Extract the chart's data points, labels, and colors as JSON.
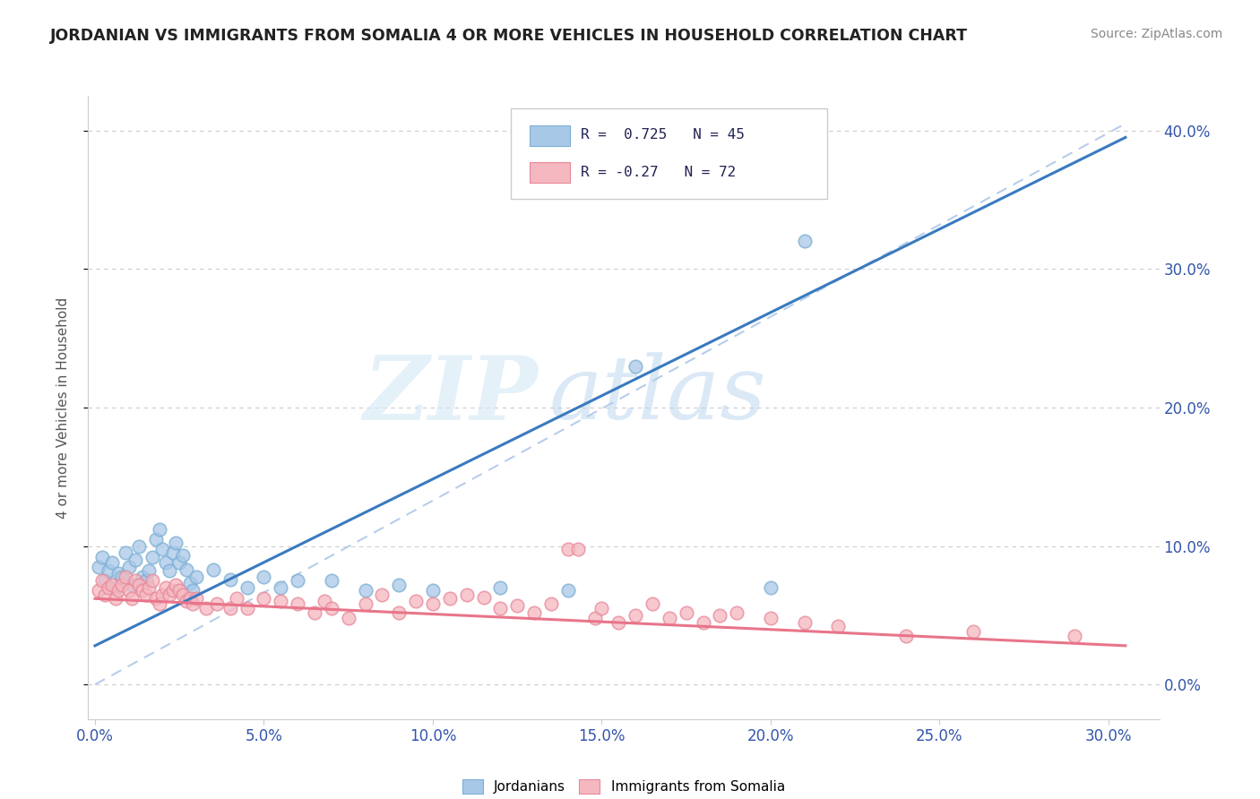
{
  "title": "JORDANIAN VS IMMIGRANTS FROM SOMALIA 4 OR MORE VEHICLES IN HOUSEHOLD CORRELATION CHART",
  "source": "Source: ZipAtlas.com",
  "ylabel": "4 or more Vehicles in Household",
  "jordanian_R": 0.725,
  "jordanian_N": 45,
  "somalia_R": -0.27,
  "somalia_N": 72,
  "blue_dot_color": "#a8c8e8",
  "blue_dot_edge": "#7bafd4",
  "blue_line_color": "#3a7abf",
  "pink_dot_color": "#f5b8c0",
  "pink_dot_edge": "#e8889a",
  "pink_line_color": "#e8758a",
  "dash_color": "#b0c8e8",
  "xlim": [
    -0.002,
    0.315
  ],
  "ylim": [
    -0.025,
    0.425
  ],
  "xticks": [
    0.0,
    0.05,
    0.1,
    0.15,
    0.2,
    0.25,
    0.3
  ],
  "yticks": [
    0.0,
    0.1,
    0.2,
    0.3,
    0.4
  ],
  "blue_line": [
    [
      0.0,
      0.028
    ],
    [
      0.305,
      0.395
    ]
  ],
  "pink_line": [
    [
      0.0,
      0.062
    ],
    [
      0.305,
      0.028
    ]
  ],
  "dash_line": [
    [
      0.0,
      0.0
    ],
    [
      0.305,
      0.405
    ]
  ],
  "blue_scatter": [
    [
      0.001,
      0.085
    ],
    [
      0.002,
      0.092
    ],
    [
      0.003,
      0.075
    ],
    [
      0.004,
      0.082
    ],
    [
      0.005,
      0.088
    ],
    [
      0.006,
      0.07
    ],
    [
      0.007,
      0.08
    ],
    [
      0.008,
      0.078
    ],
    [
      0.009,
      0.095
    ],
    [
      0.01,
      0.085
    ],
    [
      0.011,
      0.072
    ],
    [
      0.012,
      0.09
    ],
    [
      0.013,
      0.1
    ],
    [
      0.014,
      0.078
    ],
    [
      0.015,
      0.075
    ],
    [
      0.016,
      0.082
    ],
    [
      0.017,
      0.092
    ],
    [
      0.018,
      0.105
    ],
    [
      0.019,
      0.112
    ],
    [
      0.02,
      0.098
    ],
    [
      0.021,
      0.088
    ],
    [
      0.022,
      0.082
    ],
    [
      0.023,
      0.095
    ],
    [
      0.024,
      0.102
    ],
    [
      0.025,
      0.088
    ],
    [
      0.026,
      0.093
    ],
    [
      0.027,
      0.083
    ],
    [
      0.028,
      0.073
    ],
    [
      0.029,
      0.068
    ],
    [
      0.03,
      0.078
    ],
    [
      0.035,
      0.083
    ],
    [
      0.04,
      0.076
    ],
    [
      0.045,
      0.07
    ],
    [
      0.05,
      0.078
    ],
    [
      0.055,
      0.07
    ],
    [
      0.06,
      0.075
    ],
    [
      0.07,
      0.075
    ],
    [
      0.08,
      0.068
    ],
    [
      0.09,
      0.072
    ],
    [
      0.1,
      0.068
    ],
    [
      0.12,
      0.07
    ],
    [
      0.14,
      0.068
    ],
    [
      0.16,
      0.23
    ],
    [
      0.2,
      0.07
    ],
    [
      0.21,
      0.32
    ]
  ],
  "somalia_scatter": [
    [
      0.001,
      0.068
    ],
    [
      0.002,
      0.075
    ],
    [
      0.003,
      0.065
    ],
    [
      0.004,
      0.07
    ],
    [
      0.005,
      0.072
    ],
    [
      0.006,
      0.062
    ],
    [
      0.007,
      0.068
    ],
    [
      0.008,
      0.072
    ],
    [
      0.009,
      0.078
    ],
    [
      0.01,
      0.068
    ],
    [
      0.011,
      0.062
    ],
    [
      0.012,
      0.075
    ],
    [
      0.013,
      0.072
    ],
    [
      0.014,
      0.068
    ],
    [
      0.015,
      0.065
    ],
    [
      0.016,
      0.07
    ],
    [
      0.017,
      0.075
    ],
    [
      0.018,
      0.062
    ],
    [
      0.019,
      0.058
    ],
    [
      0.02,
      0.065
    ],
    [
      0.021,
      0.07
    ],
    [
      0.022,
      0.065
    ],
    [
      0.023,
      0.068
    ],
    [
      0.024,
      0.072
    ],
    [
      0.025,
      0.068
    ],
    [
      0.026,
      0.065
    ],
    [
      0.027,
      0.06
    ],
    [
      0.028,
      0.062
    ],
    [
      0.029,
      0.058
    ],
    [
      0.03,
      0.062
    ],
    [
      0.033,
      0.055
    ],
    [
      0.036,
      0.058
    ],
    [
      0.04,
      0.055
    ],
    [
      0.042,
      0.062
    ],
    [
      0.045,
      0.055
    ],
    [
      0.05,
      0.062
    ],
    [
      0.055,
      0.06
    ],
    [
      0.06,
      0.058
    ],
    [
      0.065,
      0.052
    ],
    [
      0.068,
      0.06
    ],
    [
      0.07,
      0.055
    ],
    [
      0.075,
      0.048
    ],
    [
      0.08,
      0.058
    ],
    [
      0.085,
      0.065
    ],
    [
      0.09,
      0.052
    ],
    [
      0.095,
      0.06
    ],
    [
      0.1,
      0.058
    ],
    [
      0.105,
      0.062
    ],
    [
      0.11,
      0.065
    ],
    [
      0.115,
      0.063
    ],
    [
      0.12,
      0.055
    ],
    [
      0.125,
      0.057
    ],
    [
      0.13,
      0.052
    ],
    [
      0.135,
      0.058
    ],
    [
      0.14,
      0.098
    ],
    [
      0.143,
      0.098
    ],
    [
      0.148,
      0.048
    ],
    [
      0.15,
      0.055
    ],
    [
      0.155,
      0.045
    ],
    [
      0.16,
      0.05
    ],
    [
      0.165,
      0.058
    ],
    [
      0.17,
      0.048
    ],
    [
      0.175,
      0.052
    ],
    [
      0.18,
      0.045
    ],
    [
      0.185,
      0.05
    ],
    [
      0.19,
      0.052
    ],
    [
      0.2,
      0.048
    ],
    [
      0.21,
      0.045
    ],
    [
      0.22,
      0.042
    ],
    [
      0.24,
      0.035
    ],
    [
      0.26,
      0.038
    ],
    [
      0.29,
      0.035
    ]
  ],
  "watermark_zip": "ZIP",
  "watermark_atlas": "atlas",
  "background_color": "#ffffff",
  "grid_color": "#cccccc"
}
